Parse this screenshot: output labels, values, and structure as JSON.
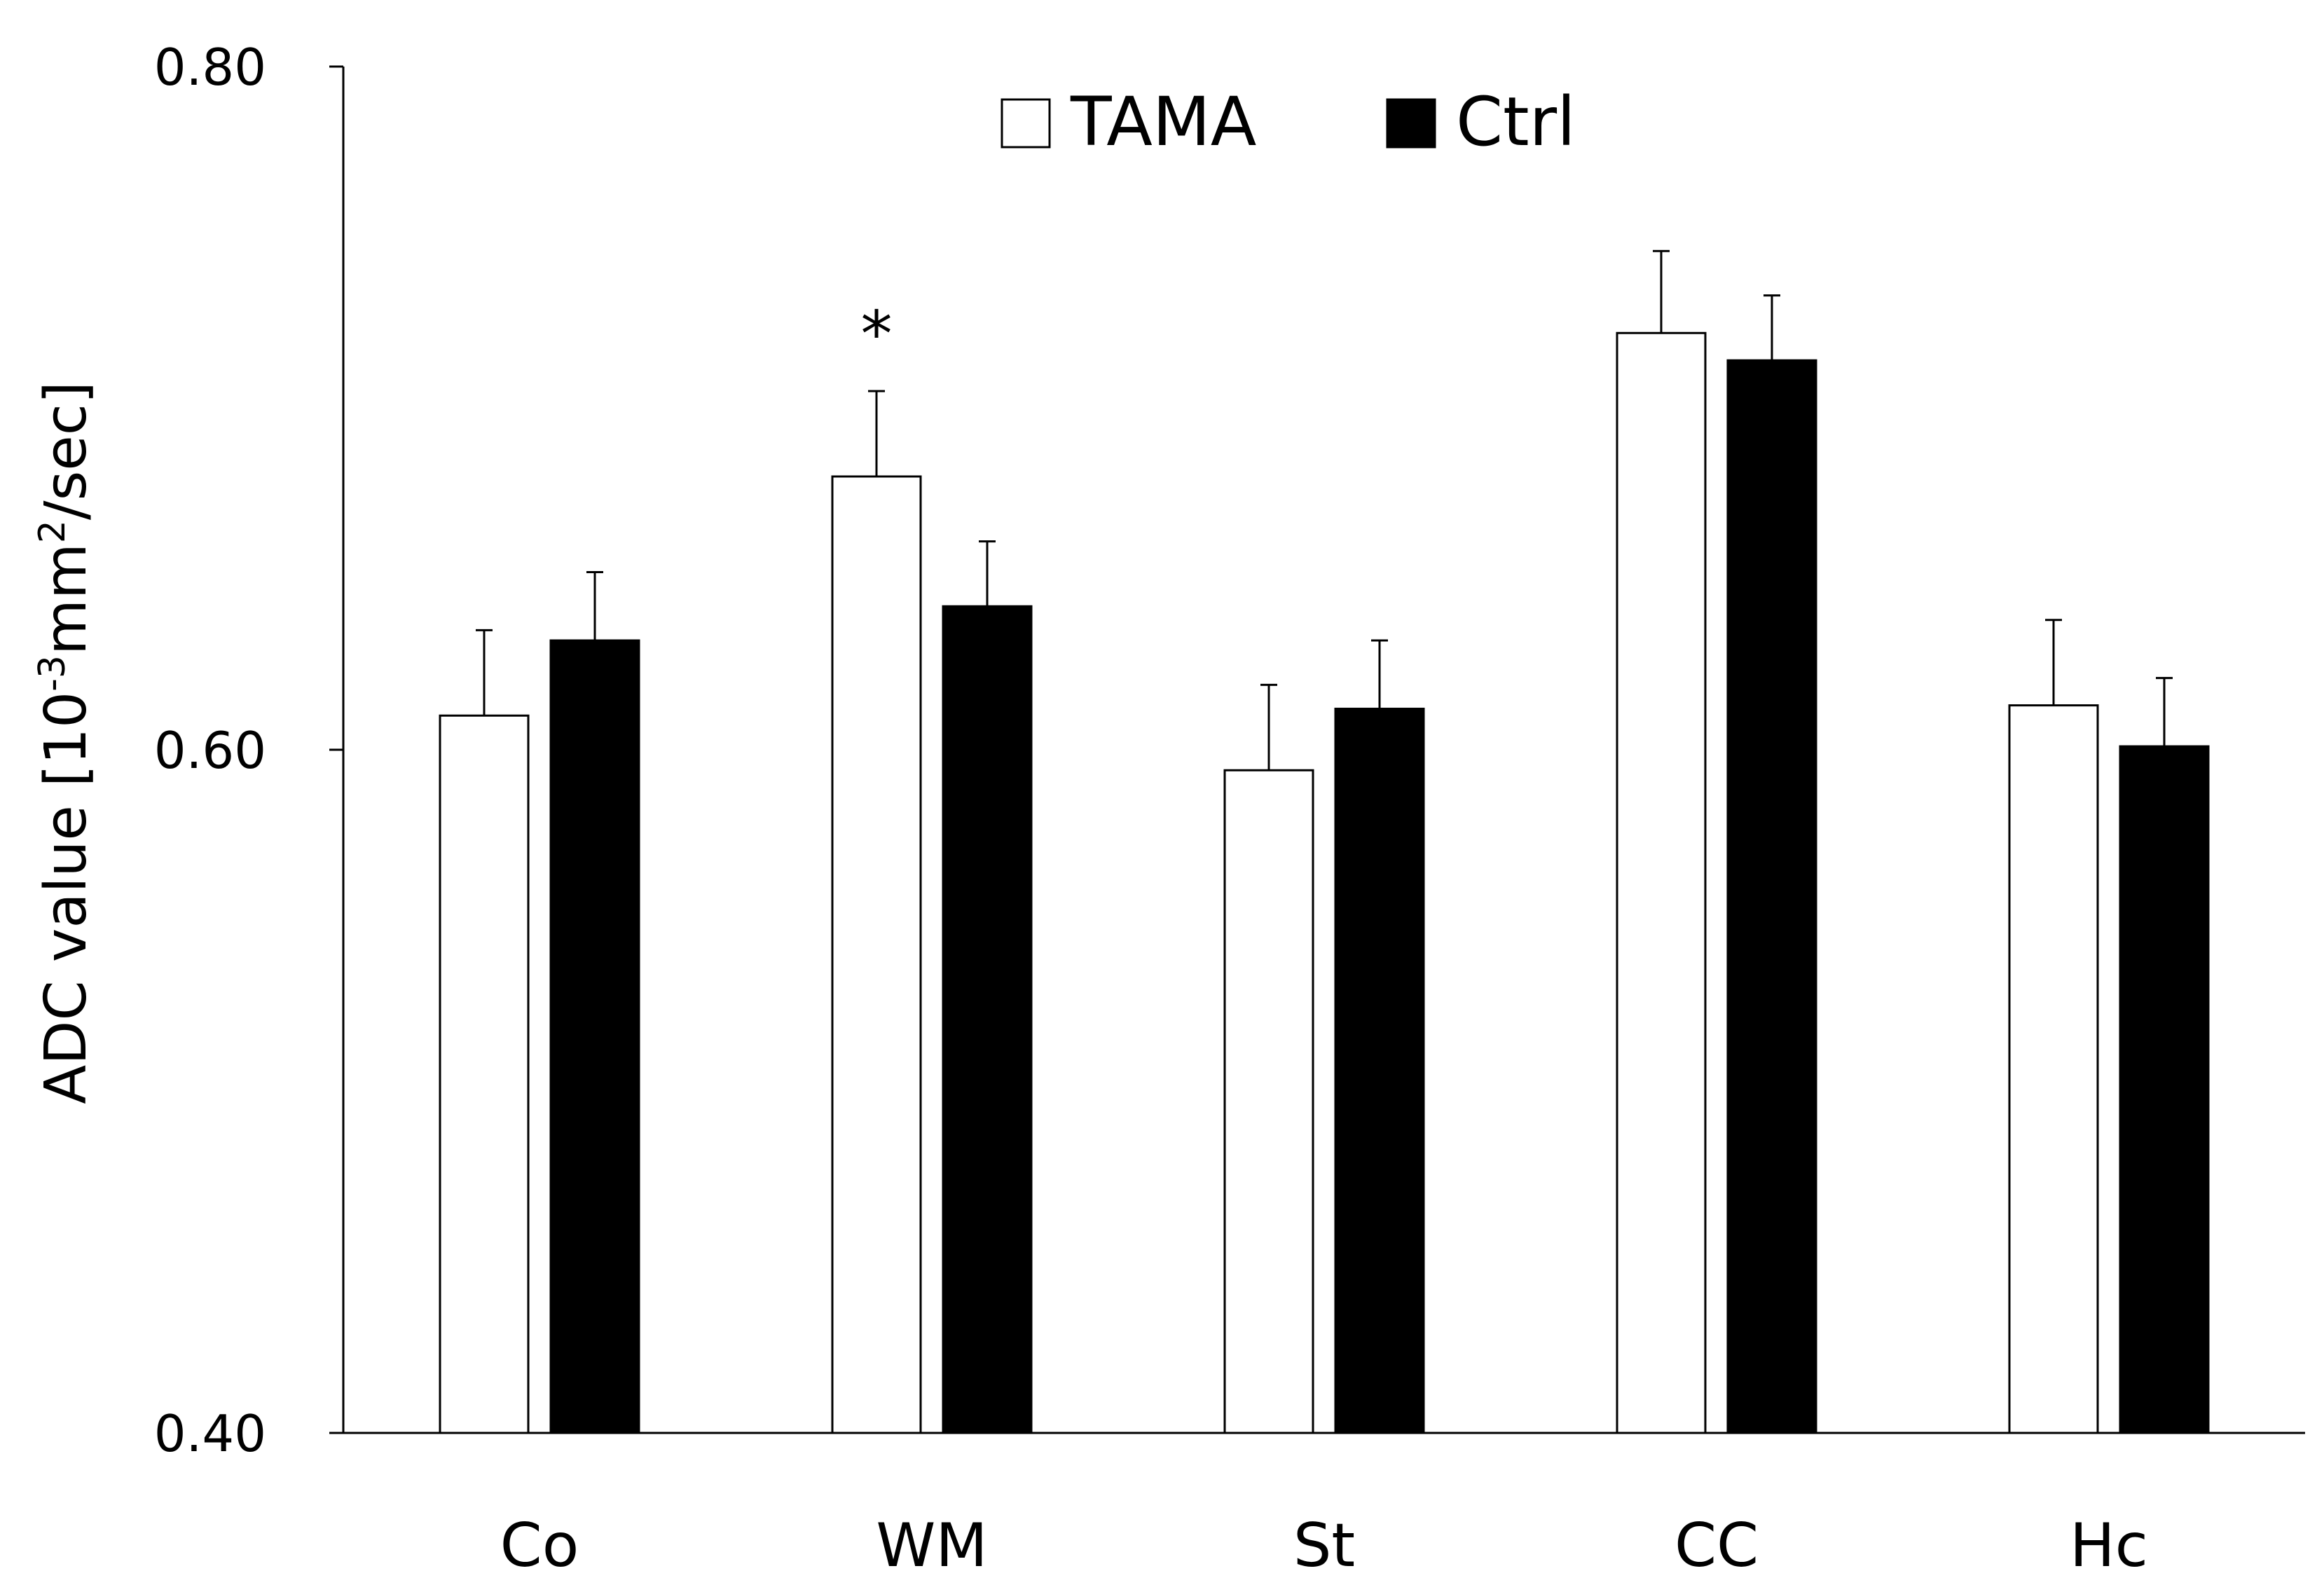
{
  "chart_data": {
    "type": "bar",
    "title": "",
    "xlabel": "",
    "ylabel": {
      "prefix": "ADC value [10",
      "sup1": "-3",
      "mid": "mm",
      "sup2": "2",
      "suffix": "/sec]"
    },
    "ylim": [
      0.4,
      0.8
    ],
    "yticks": [
      {
        "value": 0.8,
        "label": "0.80"
      },
      {
        "value": 0.6,
        "label": "0.60"
      },
      {
        "value": 0.4,
        "label": "0.40"
      }
    ],
    "categories": [
      "Co",
      "WM",
      "St",
      "CC",
      "Hc"
    ],
    "series": [
      {
        "name": "TAMA",
        "fill": "#ffffff",
        "stroke": "#000000",
        "values": [
          0.61,
          0.68,
          0.594,
          0.722,
          0.613
        ],
        "errors": [
          0.025,
          0.025,
          0.025,
          0.024,
          0.025
        ]
      },
      {
        "name": "Ctrl",
        "fill": "#000000",
        "stroke": "#000000",
        "values": [
          0.632,
          0.642,
          0.612,
          0.714,
          0.601
        ],
        "errors": [
          0.02,
          0.019,
          0.02,
          0.019,
          0.02
        ]
      }
    ],
    "annotations": [
      {
        "text": "*",
        "category": "WM",
        "series": "TAMA"
      }
    ],
    "legend": {
      "position": "top-center"
    },
    "grid": false
  }
}
